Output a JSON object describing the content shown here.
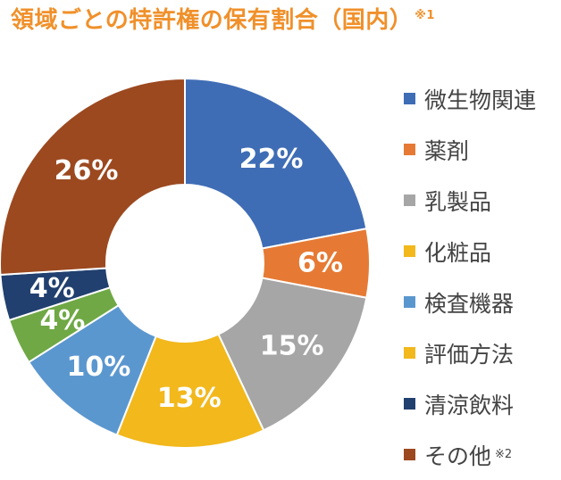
{
  "chart_data": {
    "type": "pie",
    "title": "領域ごとの特許権の保有割合（国内）",
    "title_note": "※1",
    "categories": [
      "微生物関連",
      "薬剤",
      "乳製品",
      "化粧品",
      "検査機器",
      "評価方法",
      "清涼飲料",
      "その他"
    ],
    "values": [
      22,
      6,
      15,
      13,
      10,
      4,
      4,
      26
    ],
    "value_labels": [
      "22%",
      "6%",
      "15%",
      "13%",
      "10%",
      "4%",
      "4%",
      "26%"
    ],
    "slice_colors": [
      "#3f6db5",
      "#e67a34",
      "#a6a6a6",
      "#f2b81c",
      "#5b97cf",
      "#6fa845",
      "#21406f",
      "#9c4920"
    ],
    "legend_colors": [
      "#3f6db5",
      "#e67a34",
      "#a6a6a6",
      "#f2b81c",
      "#5b97cf",
      "#f2b81c",
      "#21406f",
      "#9c4920"
    ],
    "legend_notes": [
      "",
      "",
      "",
      "",
      "",
      "",
      "",
      "※2"
    ],
    "legend_position": "right",
    "donut": true,
    "start_angle": "12 o'clock",
    "direction": "clockwise"
  }
}
